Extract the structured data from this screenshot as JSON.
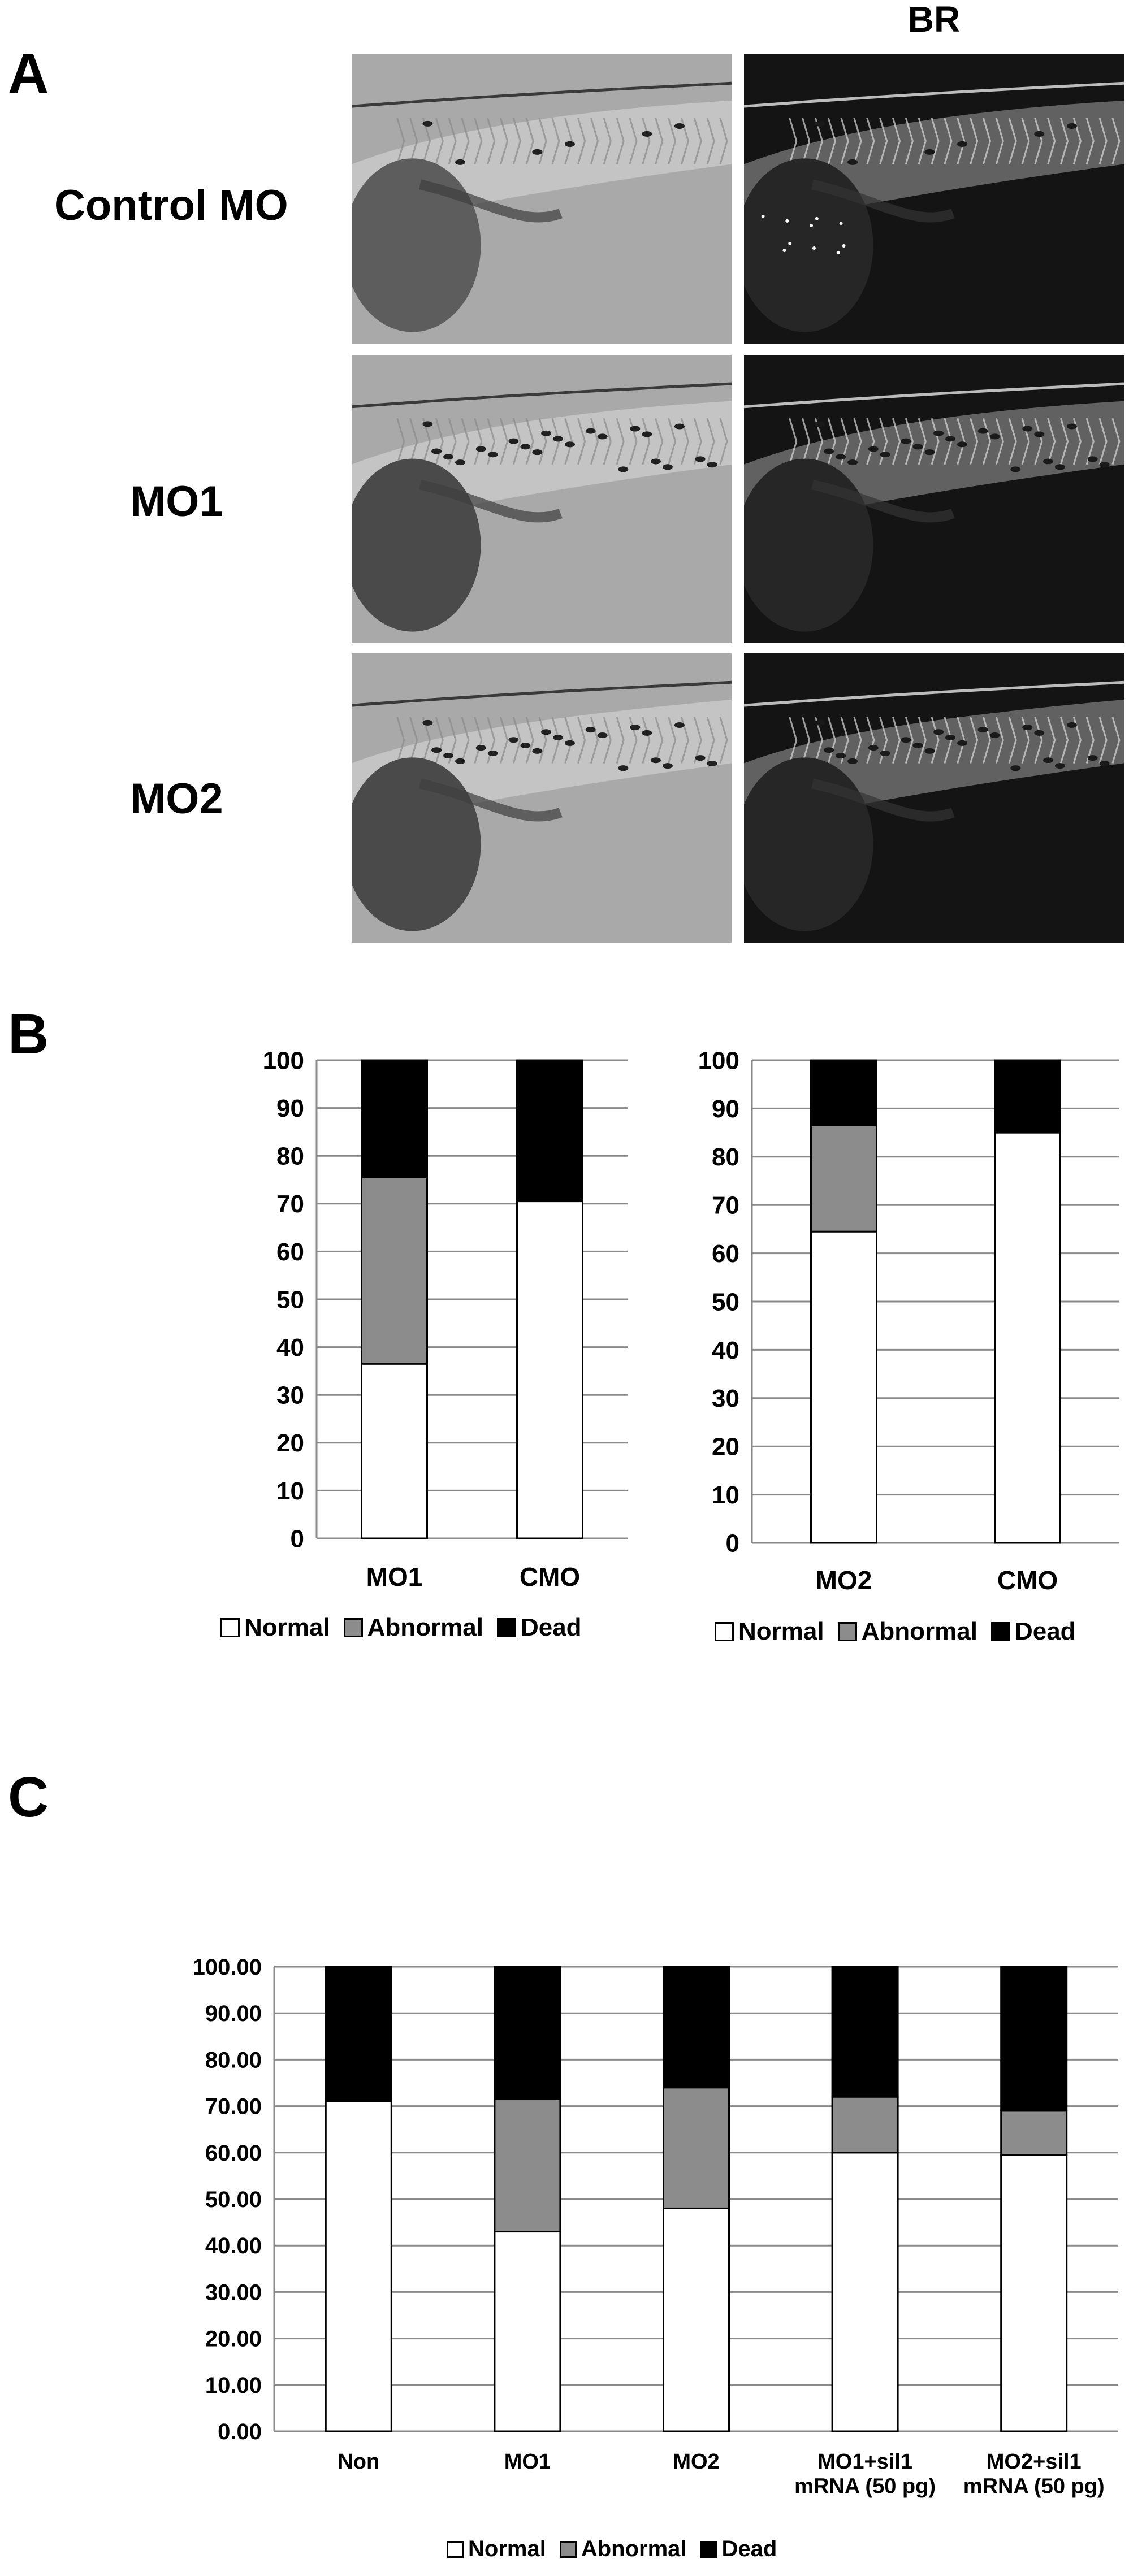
{
  "panel_a": {
    "letter": "A",
    "column_header": "BR",
    "rows": [
      {
        "label": "Control MO"
      },
      {
        "label": "MO1"
      },
      {
        "label": "MO2"
      }
    ]
  },
  "panel_b": {
    "letter": "B"
  },
  "panel_c": {
    "letter": "C"
  },
  "colors": {
    "normal": "#ffffff",
    "abnormal": "#8c8c8c",
    "dead": "#000000",
    "grid": "#8a8a8a"
  },
  "chart_data": [
    {
      "type": "bar",
      "stacked": true,
      "panel": "B-left",
      "categories": [
        "MO1",
        "CMO"
      ],
      "ylim": [
        0,
        100
      ],
      "yticks": [
        "0",
        "10",
        "20",
        "30",
        "40",
        "50",
        "60",
        "70",
        "80",
        "90",
        "100"
      ],
      "grid": true,
      "legend": "bottom",
      "series": [
        {
          "name": "Normal",
          "values": [
            36.5,
            70.5
          ]
        },
        {
          "name": "Abnormal",
          "values": [
            39,
            0
          ]
        },
        {
          "name": "Dead",
          "values": [
            24.5,
            29.5
          ]
        }
      ]
    },
    {
      "type": "bar",
      "stacked": true,
      "panel": "B-right",
      "categories": [
        "MO2",
        "CMO"
      ],
      "ylim": [
        0,
        100
      ],
      "yticks": [
        "0",
        "10",
        "20",
        "30",
        "40",
        "50",
        "60",
        "70",
        "80",
        "90",
        "100"
      ],
      "grid": true,
      "legend": "bottom",
      "series": [
        {
          "name": "Normal",
          "values": [
            64.5,
            85
          ]
        },
        {
          "name": "Abnormal",
          "values": [
            22,
            0
          ]
        },
        {
          "name": "Dead",
          "values": [
            13.5,
            15
          ]
        }
      ]
    },
    {
      "type": "bar",
      "stacked": true,
      "panel": "C",
      "categories": [
        "Non",
        "MO1",
        "MO2",
        "MO1+sil1\nmRNA (50 pg)",
        "MO2+sil1\nmRNA (50 pg)"
      ],
      "ylim": [
        0,
        100
      ],
      "yticks": [
        "0.00",
        "10.00",
        "20.00",
        "30.00",
        "40.00",
        "50.00",
        "60.00",
        "70.00",
        "80.00",
        "90.00",
        "100.00"
      ],
      "grid": true,
      "legend": "bottom",
      "series": [
        {
          "name": "Normal",
          "values": [
            71,
            43,
            48,
            60,
            59.5
          ]
        },
        {
          "name": "Abnormal",
          "values": [
            0,
            28.5,
            26,
            12,
            9.5
          ]
        },
        {
          "name": "Dead",
          "values": [
            29,
            28.5,
            26,
            28,
            31
          ]
        }
      ]
    }
  ]
}
